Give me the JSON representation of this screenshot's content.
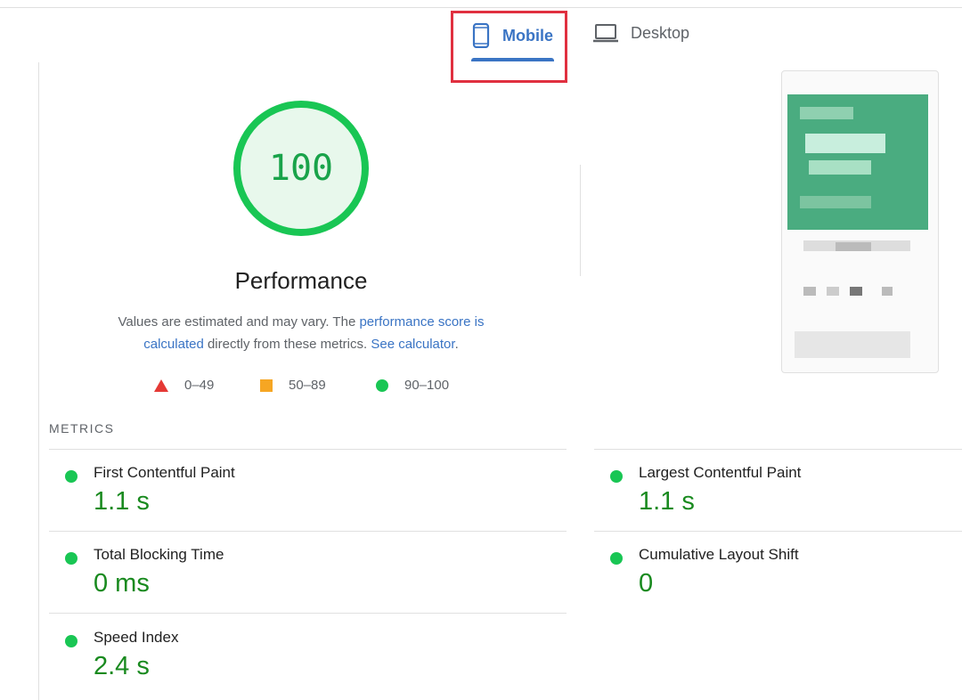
{
  "tabs": [
    {
      "label": "Mobile",
      "icon": "mobile-icon",
      "selected": true
    },
    {
      "label": "Desktop",
      "icon": "laptop-icon",
      "selected": false
    }
  ],
  "score": {
    "value": "100",
    "category": "Performance",
    "color": "#19c654"
  },
  "description": {
    "pre": "Values are estimated and may vary. The ",
    "link1": "performance score is calculated",
    "mid": " directly from these metrics. ",
    "link2": "See calculator",
    "post": "."
  },
  "legend": [
    {
      "range": "0–49",
      "color": "#e53935"
    },
    {
      "range": "50–89",
      "color": "#f6a623"
    },
    {
      "range": "90–100",
      "color": "#19c654"
    }
  ],
  "metrics_heading": "METRICS",
  "metrics": [
    {
      "label": "First Contentful Paint",
      "value": "1.1 s"
    },
    {
      "label": "Largest Contentful Paint",
      "value": "1.1 s"
    },
    {
      "label": "Total Blocking Time",
      "value": "0 ms"
    },
    {
      "label": "Cumulative Layout Shift",
      "value": "0"
    },
    {
      "label": "Speed Index",
      "value": "2.4 s"
    }
  ]
}
